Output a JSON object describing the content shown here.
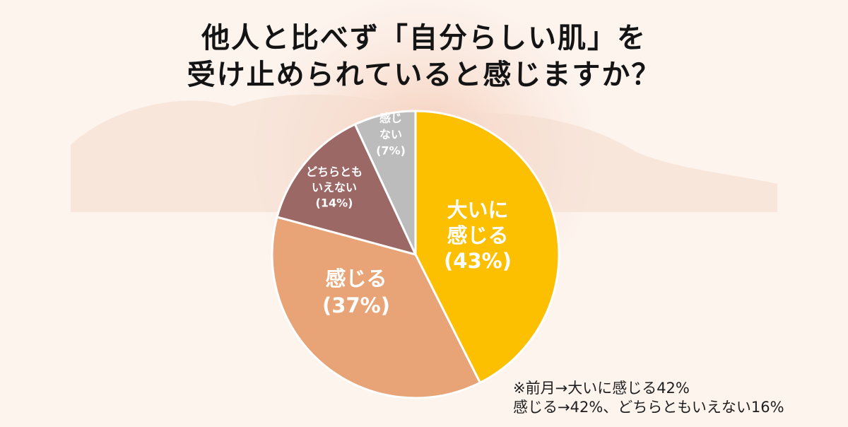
{
  "title": {
    "line1": "他人と比べず「自分らしい肌」を",
    "line2": "受け止められていると感じますか？"
  },
  "chart_data": {
    "type": "pie",
    "start_angle_deg": 0,
    "direction": "clockwise",
    "slices": [
      {
        "label_lines": [
          "大いに",
          "感じる",
          "(43%)"
        ],
        "value": 43,
        "color": "#fcc000"
      },
      {
        "label_lines": [
          "感じる",
          "(37%)"
        ],
        "value": 37,
        "color": "#e8a477"
      },
      {
        "label_lines": [
          "どちらとも",
          "いえない",
          "(14%)"
        ],
        "value": 14,
        "color": "#9b6866"
      },
      {
        "label_lines": [
          "感じ",
          "ない",
          "(7%)"
        ],
        "value": 7,
        "color": "#bcbcbc"
      }
    ]
  },
  "note": {
    "line1": "※前月→大いに感じる42%",
    "line2": "感じる→42%、どちらともいえない16%"
  },
  "colors": {
    "background": "#fdf4ee",
    "decoration": "#f6dacd",
    "slice_border": "#ffffff"
  }
}
